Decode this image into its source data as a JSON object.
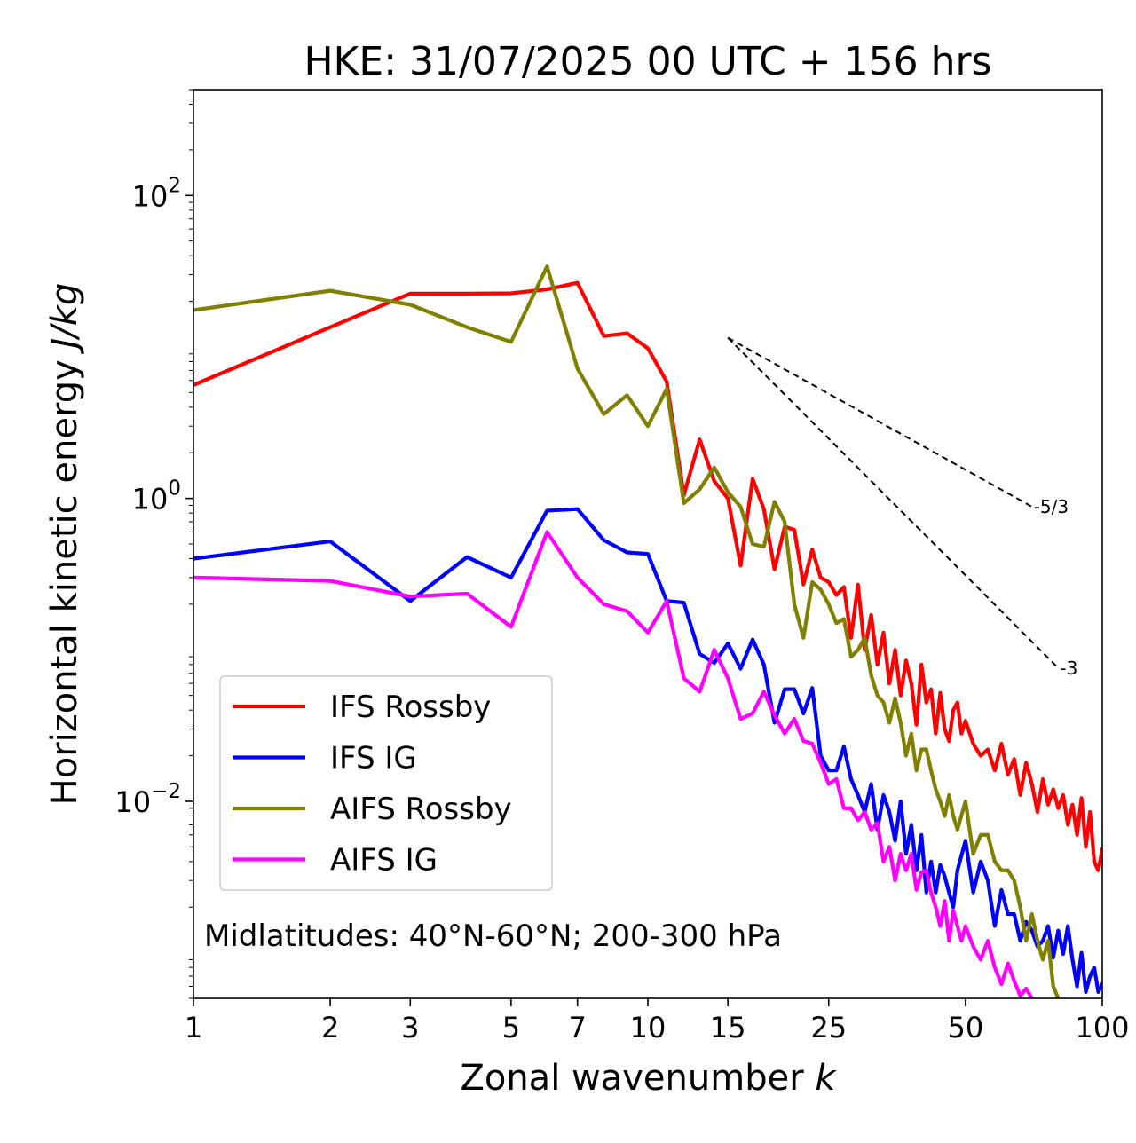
{
  "chart_data": {
    "type": "line",
    "title": "HKE: 31/07/2025 00 UTC + 156 hrs",
    "xlabel_prefix": "Zonal wavenumber ",
    "xlabel_var": "k",
    "ylabel_prefix": "Horizontal kinetic energy ",
    "ylabel_units": "J/kg",
    "xscale": "log",
    "yscale": "log",
    "xlim": [
      1,
      100
    ],
    "ylim": [
      0.0005,
      500
    ],
    "xticks": [
      {
        "value": 1,
        "label": "1"
      },
      {
        "value": 2,
        "label": "2"
      },
      {
        "value": 3,
        "label": "3"
      },
      {
        "value": 5,
        "label": "5"
      },
      {
        "value": 7,
        "label": "7"
      },
      {
        "value": 10,
        "label": "10"
      },
      {
        "value": 15,
        "label": "15"
      },
      {
        "value": 25,
        "label": "25"
      },
      {
        "value": 50,
        "label": "50"
      },
      {
        "value": 100,
        "label": "100"
      }
    ],
    "yticks": [
      {
        "value": 100,
        "base": "10",
        "exp": "2"
      },
      {
        "value": 1,
        "base": "10",
        "exp": "0"
      },
      {
        "value": 0.01,
        "base": "10",
        "exp": "−2"
      }
    ],
    "annotation": "Midlatitudes: 40°N-60°N; 200-300 hPa",
    "reference_lines": [
      {
        "label": "-5/3",
        "slope": -1.6667,
        "x0": 15,
        "y0": 11.5,
        "x1": 70
      },
      {
        "label": "-3",
        "slope": -3,
        "x0": 15,
        "y0": 11.5,
        "x1": 80
      }
    ],
    "series": [
      {
        "name": "IFS Rossby",
        "color": "#ff0000",
        "points": [
          [
            1,
            5.6
          ],
          [
            2,
            13.5
          ],
          [
            3,
            22.5
          ],
          [
            4,
            22.5
          ],
          [
            5,
            22.6
          ],
          [
            6,
            24
          ],
          [
            7,
            26.5
          ],
          [
            8,
            11.8
          ],
          [
            9,
            12.3
          ],
          [
            10,
            9.8
          ],
          [
            11,
            5.9
          ],
          [
            12,
            1.05
          ],
          [
            13,
            2.45
          ],
          [
            14,
            1.3
          ],
          [
            15,
            1.0
          ],
          [
            16,
            0.36
          ],
          [
            17,
            1.35
          ],
          [
            18,
            0.85
          ],
          [
            19,
            0.34
          ],
          [
            20,
            0.65
          ],
          [
            21,
            0.62
          ],
          [
            22,
            0.27
          ],
          [
            23,
            0.46
          ],
          [
            24,
            0.3
          ],
          [
            25,
            0.28
          ],
          [
            26,
            0.23
          ],
          [
            27,
            0.26
          ],
          [
            28,
            0.12
          ],
          [
            29,
            0.27
          ],
          [
            30,
            0.1
          ],
          [
            31,
            0.17
          ],
          [
            32,
            0.08
          ],
          [
            33,
            0.13
          ],
          [
            34,
            0.06
          ],
          [
            35,
            0.1
          ],
          [
            36,
            0.05
          ],
          [
            37,
            0.085
          ],
          [
            38,
            0.06
          ],
          [
            39,
            0.032
          ],
          [
            40,
            0.08
          ],
          [
            41,
            0.045
          ],
          [
            42,
            0.055
          ],
          [
            43,
            0.028
          ],
          [
            44,
            0.052
          ],
          [
            45,
            0.03
          ],
          [
            46,
            0.025
          ],
          [
            47,
            0.04
          ],
          [
            48,
            0.045
          ],
          [
            49,
            0.028
          ],
          [
            50,
            0.034
          ],
          [
            52,
            0.024
          ],
          [
            54,
            0.02
          ],
          [
            56,
            0.022
          ],
          [
            58,
            0.016
          ],
          [
            60,
            0.024
          ],
          [
            62,
            0.015
          ],
          [
            64,
            0.019
          ],
          [
            66,
            0.011
          ],
          [
            68,
            0.018
          ],
          [
            70,
            0.013
          ],
          [
            72,
            0.0085
          ],
          [
            74,
            0.014
          ],
          [
            76,
            0.0095
          ],
          [
            78,
            0.012
          ],
          [
            80,
            0.009
          ],
          [
            82,
            0.011
          ],
          [
            84,
            0.007
          ],
          [
            86,
            0.0095
          ],
          [
            88,
            0.006
          ],
          [
            90,
            0.0105
          ],
          [
            92,
            0.005
          ],
          [
            94,
            0.0085
          ],
          [
            96,
            0.004
          ],
          [
            98,
            0.0035
          ],
          [
            100,
            0.0048
          ]
        ]
      },
      {
        "name": "IFS IG",
        "color": "#0000ff",
        "points": [
          [
            1,
            0.4
          ],
          [
            2,
            0.52
          ],
          [
            3,
            0.21
          ],
          [
            4,
            0.41
          ],
          [
            5,
            0.3
          ],
          [
            6,
            0.83
          ],
          [
            7,
            0.85
          ],
          [
            8,
            0.53
          ],
          [
            9,
            0.44
          ],
          [
            10,
            0.43
          ],
          [
            11,
            0.21
          ],
          [
            12,
            0.205
          ],
          [
            13,
            0.094
          ],
          [
            14,
            0.082
          ],
          [
            15,
            0.11
          ],
          [
            16,
            0.075
          ],
          [
            17,
            0.117
          ],
          [
            18,
            0.08
          ],
          [
            19,
            0.033
          ],
          [
            20,
            0.055
          ],
          [
            21,
            0.055
          ],
          [
            22,
            0.038
          ],
          [
            23,
            0.056
          ],
          [
            24,
            0.02
          ],
          [
            25,
            0.016
          ],
          [
            26,
            0.016
          ],
          [
            27,
            0.023
          ],
          [
            28,
            0.014
          ],
          [
            29,
            0.011
          ],
          [
            30,
            0.0085
          ],
          [
            31,
            0.013
          ],
          [
            32,
            0.0065
          ],
          [
            33,
            0.011
          ],
          [
            34,
            0.0085
          ],
          [
            35,
            0.0055
          ],
          [
            36,
            0.01
          ],
          [
            37,
            0.0045
          ],
          [
            38,
            0.007
          ],
          [
            39,
            0.0035
          ],
          [
            40,
            0.006
          ],
          [
            41,
            0.0025
          ],
          [
            42,
            0.004
          ],
          [
            43,
            0.0025
          ],
          [
            44,
            0.0038
          ],
          [
            45,
            0.0032
          ],
          [
            46,
            0.0025
          ],
          [
            47,
            0.002
          ],
          [
            48,
            0.0035
          ],
          [
            50,
            0.0055
          ],
          [
            52,
            0.0025
          ],
          [
            54,
            0.004
          ],
          [
            56,
            0.003
          ],
          [
            58,
            0.0015
          ],
          [
            60,
            0.0026
          ],
          [
            62,
            0.0018
          ],
          [
            64,
            0.0018
          ],
          [
            66,
            0.0012
          ],
          [
            68,
            0.0016
          ],
          [
            70,
            0.0014
          ],
          [
            72,
            0.0011
          ],
          [
            74,
            0.0012
          ],
          [
            76,
            0.0015
          ],
          [
            78,
            0.00093
          ],
          [
            80,
            0.0014
          ],
          [
            82,
            0.00098
          ],
          [
            84,
            0.0015
          ],
          [
            86,
            0.0009
          ],
          [
            88,
            0.0006
          ],
          [
            90,
            0.001
          ],
          [
            92,
            0.00055
          ],
          [
            94,
            0.0007
          ],
          [
            96,
            0.0008
          ],
          [
            98,
            0.00055
          ],
          [
            100,
            0.00062
          ]
        ]
      },
      {
        "name": "AIFS Rossby",
        "color": "#808000",
        "points": [
          [
            1,
            17.5
          ],
          [
            2,
            23.5
          ],
          [
            3,
            19
          ],
          [
            4,
            13.5
          ],
          [
            5,
            10.8
          ],
          [
            6,
            34
          ],
          [
            7,
            7.2
          ],
          [
            8,
            3.6
          ],
          [
            9,
            4.8
          ],
          [
            10,
            3.0
          ],
          [
            11,
            5.3
          ],
          [
            12,
            0.93
          ],
          [
            13,
            1.15
          ],
          [
            14,
            1.6
          ],
          [
            15,
            1.1
          ],
          [
            16,
            0.88
          ],
          [
            17,
            0.5
          ],
          [
            18,
            0.48
          ],
          [
            19,
            0.95
          ],
          [
            20,
            0.7
          ],
          [
            21,
            0.2
          ],
          [
            22,
            0.12
          ],
          [
            23,
            0.28
          ],
          [
            24,
            0.25
          ],
          [
            25,
            0.2
          ],
          [
            26,
            0.15
          ],
          [
            27,
            0.16
          ],
          [
            28,
            0.09
          ],
          [
            29,
            0.1
          ],
          [
            30,
            0.12
          ],
          [
            31,
            0.068
          ],
          [
            32,
            0.05
          ],
          [
            33,
            0.045
          ],
          [
            34,
            0.033
          ],
          [
            35,
            0.048
          ],
          [
            36,
            0.033
          ],
          [
            37,
            0.02
          ],
          [
            38,
            0.028
          ],
          [
            39,
            0.016
          ],
          [
            40,
            0.022
          ],
          [
            41,
            0.022
          ],
          [
            42,
            0.016
          ],
          [
            43,
            0.012
          ],
          [
            44,
            0.01
          ],
          [
            45,
            0.008
          ],
          [
            46,
            0.011
          ],
          [
            47,
            0.008
          ],
          [
            48,
            0.0065
          ],
          [
            50,
            0.01
          ],
          [
            52,
            0.0045
          ],
          [
            54,
            0.006
          ],
          [
            56,
            0.006
          ],
          [
            58,
            0.004
          ],
          [
            60,
            0.0035
          ],
          [
            62,
            0.0035
          ],
          [
            64,
            0.003
          ],
          [
            66,
            0.002
          ],
          [
            68,
            0.0012
          ],
          [
            70,
            0.0018
          ],
          [
            72,
            0.0012
          ],
          [
            74,
            0.0009
          ],
          [
            76,
            0.0012
          ],
          [
            78,
            0.0006
          ],
          [
            80,
            0.0005
          ]
        ]
      },
      {
        "name": "AIFS IG",
        "color": "#ff00ff",
        "points": [
          [
            1,
            0.3
          ],
          [
            2,
            0.285
          ],
          [
            3,
            0.225
          ],
          [
            4,
            0.235
          ],
          [
            5,
            0.142
          ],
          [
            6,
            0.6
          ],
          [
            7,
            0.3
          ],
          [
            8,
            0.2
          ],
          [
            9,
            0.18
          ],
          [
            10,
            0.13
          ],
          [
            11,
            0.21
          ],
          [
            12,
            0.065
          ],
          [
            13,
            0.053
          ],
          [
            14,
            0.1
          ],
          [
            15,
            0.065
          ],
          [
            16,
            0.035
          ],
          [
            17,
            0.038
          ],
          [
            18,
            0.053
          ],
          [
            19,
            0.037
          ],
          [
            20,
            0.028
          ],
          [
            21,
            0.035
          ],
          [
            22,
            0.025
          ],
          [
            23,
            0.024
          ],
          [
            24,
            0.018
          ],
          [
            25,
            0.013
          ],
          [
            26,
            0.014
          ],
          [
            27,
            0.009
          ],
          [
            28,
            0.009
          ],
          [
            29,
            0.0075
          ],
          [
            30,
            0.0085
          ],
          [
            31,
            0.0065
          ],
          [
            32,
            0.0072
          ],
          [
            33,
            0.004
          ],
          [
            34,
            0.005
          ],
          [
            35,
            0.003
          ],
          [
            36,
            0.0045
          ],
          [
            37,
            0.0035
          ],
          [
            38,
            0.0045
          ],
          [
            39,
            0.0026
          ],
          [
            40,
            0.0034
          ],
          [
            41,
            0.0035
          ],
          [
            42,
            0.0025
          ],
          [
            43,
            0.002
          ],
          [
            44,
            0.0015
          ],
          [
            45,
            0.0022
          ],
          [
            46,
            0.0012
          ],
          [
            47,
            0.0019
          ],
          [
            48,
            0.0015
          ],
          [
            49,
            0.0012
          ],
          [
            50,
            0.0015
          ],
          [
            52,
            0.0011
          ],
          [
            54,
            0.0009
          ],
          [
            56,
            0.0012
          ],
          [
            58,
            0.0008
          ],
          [
            60,
            0.00062
          ],
          [
            62,
            0.00085
          ],
          [
            64,
            0.00065
          ],
          [
            66,
            0.00052
          ],
          [
            68,
            0.00058
          ],
          [
            70,
            0.0005
          ]
        ]
      }
    ]
  }
}
